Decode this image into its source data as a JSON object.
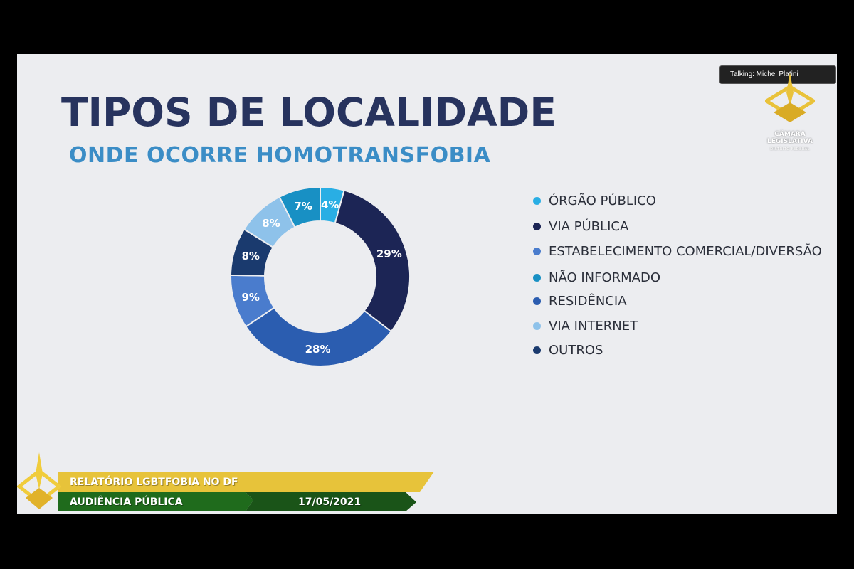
{
  "slide": {
    "title": "TIPOS DE LOCALIDADE",
    "subtitle": "ONDE OCORRE HOMOTRANSFOBIA"
  },
  "chart_data": {
    "type": "pie",
    "title": "",
    "categories": [
      "ÓRGÃO PÚBLICO",
      "VIA PÚBLICA",
      "ESTABELECIMENTO COMERCIAL/DIVERSÃO",
      "NÃO INFORMADO",
      "RESIDÊNCIA",
      "VIA INTERNET",
      "OUTROS"
    ],
    "slices": [
      {
        "label": "ÓRGÃO PÚBLICO",
        "value": 4,
        "display": "4%",
        "color": "#29aee4"
      },
      {
        "label": "VIA PÚBLICA",
        "value": 29,
        "display": "29%",
        "color": "#1c2555"
      },
      {
        "label": "RESIDÊNCIA",
        "value": 28,
        "display": "28%",
        "color": "#2b5db0"
      },
      {
        "label": "ESTABELECIMENTO COMERCIAL/DIVERSÃO",
        "value": 9,
        "display": "9%",
        "color": "#4a7ccd"
      },
      {
        "label": "OUTROS",
        "value": 8,
        "display": "8%",
        "color": "#1a3a6e"
      },
      {
        "label": "VIA INTERNET",
        "value": 8,
        "display": "8%",
        "color": "#8ec2ea"
      },
      {
        "label": "NÃO INFORMADO",
        "value": 7,
        "display": "7%",
        "color": "#1890c4"
      }
    ],
    "legend": [
      {
        "label": "ÓRGÃO PÚBLICO",
        "color": "#29aee4"
      },
      {
        "label": "VIA PÚBLICA",
        "color": "#1c2555"
      },
      {
        "label": "ESTABELECIMENTO COMERCIAL/DIVERSÃO",
        "color": "#4a7ccd"
      },
      {
        "label": "NÃO INFORMADO",
        "color": "#1890c4"
      },
      {
        "label": "RESIDÊNCIA",
        "color": "#2b5db0"
      },
      {
        "label": "VIA INTERNET",
        "color": "#8ec2ea"
      },
      {
        "label": "OUTROS",
        "color": "#1a3a6e"
      }
    ],
    "legend_position": "right"
  },
  "speaker_indicator": {
    "text": "Talking: Michel Platini"
  },
  "corner_logo": {
    "icon": "camara-legislativa-logo-icon",
    "line1": "CÂMARA",
    "line2": "LEGISLATIVA",
    "line3": "DISTRITO FEDERAL"
  },
  "lower_third": {
    "icon": "camara-logo-icon",
    "line1": "RELATÓRIO LGBTFOBIA NO DF",
    "line2": "AUDIÊNCIA PÚBLICA",
    "date": "17/05/2021",
    "colors": {
      "gold": "#e7c33a",
      "green": "#1f6b1c"
    }
  }
}
